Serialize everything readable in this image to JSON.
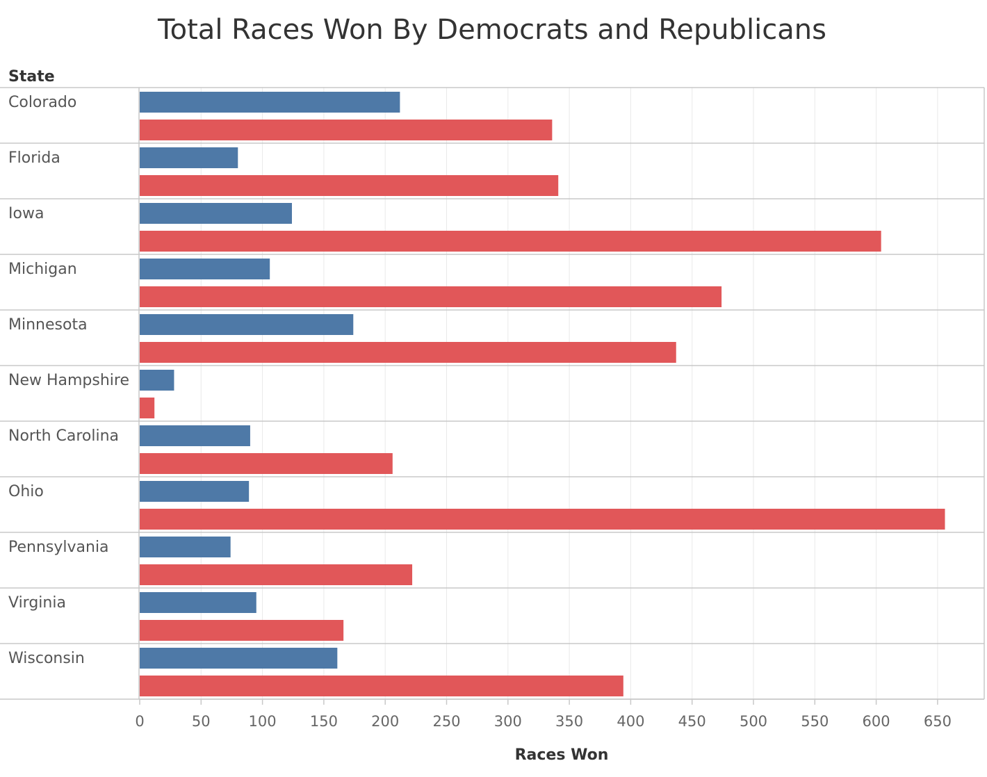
{
  "chart_data": {
    "type": "bar",
    "orientation": "horizontal",
    "title": "Total Races Won By Democrats and Republicans",
    "row_header": "State",
    "xlabel": "Races Won",
    "xlim": [
      0,
      680
    ],
    "xticks": [
      0,
      50,
      100,
      150,
      200,
      250,
      300,
      350,
      400,
      450,
      500,
      550,
      600,
      650
    ],
    "grid": true,
    "categories": [
      "Colorado",
      "Florida",
      "Iowa",
      "Michigan",
      "Minnesota",
      "New Hampshire",
      "North Carolina",
      "Ohio",
      "Pennsylvania",
      "Virginia",
      "Wisconsin"
    ],
    "series": [
      {
        "color": "#4e79a7",
        "values": [
          212,
          80,
          124,
          106,
          174,
          28,
          90,
          89,
          74,
          95,
          161
        ]
      },
      {
        "color": "#e15759",
        "values": [
          336,
          341,
          604,
          474,
          437,
          12,
          206,
          656,
          222,
          166,
          394
        ]
      }
    ]
  }
}
